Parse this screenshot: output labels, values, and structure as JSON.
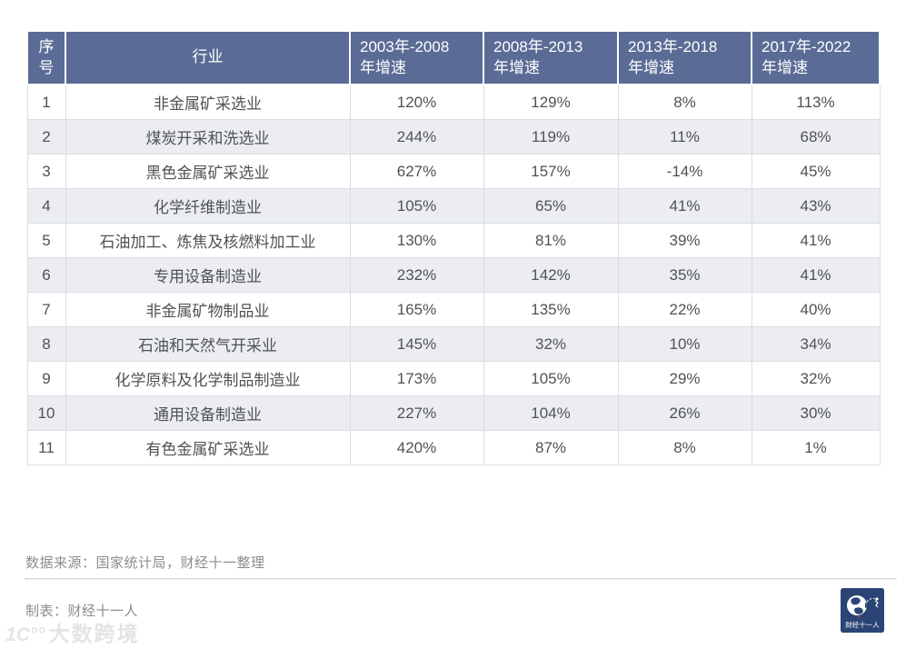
{
  "table": {
    "columns": [
      "序\n号",
      "行业",
      "2003年-2008\n年增速",
      "2008年-2013\n年增速",
      "2013年-2018\n年增速",
      "2017年-2022\n年增速"
    ],
    "rows": [
      {
        "num": "1",
        "industry": "非金属矿采选业",
        "values": [
          "120%",
          "129%",
          "8%",
          "113%"
        ]
      },
      {
        "num": "2",
        "industry": "煤炭开采和洗选业",
        "values": [
          "244%",
          "119%",
          "11%",
          "68%"
        ]
      },
      {
        "num": "3",
        "industry": "黑色金属矿采选业",
        "values": [
          "627%",
          "157%",
          "-14%",
          "45%"
        ]
      },
      {
        "num": "4",
        "industry": "化学纤维制造业",
        "values": [
          "105%",
          "65%",
          "41%",
          "43%"
        ]
      },
      {
        "num": "5",
        "industry": "石油加工、炼焦及核燃料加工业",
        "values": [
          "130%",
          "81%",
          "39%",
          "41%"
        ]
      },
      {
        "num": "6",
        "industry": "专用设备制造业",
        "values": [
          "232%",
          "142%",
          "35%",
          "41%"
        ]
      },
      {
        "num": "7",
        "industry": "非金属矿物制品业",
        "values": [
          "165%",
          "135%",
          "22%",
          "40%"
        ]
      },
      {
        "num": "8",
        "industry": "石油和天然气开采业",
        "values": [
          "145%",
          "32%",
          "10%",
          "34%"
        ]
      },
      {
        "num": "9",
        "industry": "化学原料及化学制品制造业",
        "values": [
          "173%",
          "105%",
          "29%",
          "32%"
        ]
      },
      {
        "num": "10",
        "industry": "通用设备制造业",
        "values": [
          "227%",
          "104%",
          "26%",
          "30%"
        ]
      },
      {
        "num": "11",
        "industry": "有色金属矿采选业",
        "values": [
          "420%",
          "87%",
          "8%",
          "1%"
        ]
      }
    ]
  },
  "footer": {
    "source": "数据来源：国家统计局，财经十一整理",
    "credit": "制表：财经十一人"
  },
  "logo": {
    "label": "财经十一人",
    "bg_color": "#2a4575"
  },
  "watermark": {
    "glyph": "1C°°",
    "text": "大数跨境"
  },
  "colors": {
    "header_bg": "#5a6c96",
    "header_text": "#ffffff",
    "row_alt_bg": "#ebedf1",
    "cell_border": "#d9dde3",
    "cell_text": "#4f5256",
    "footer_text": "#8c8c8c",
    "logo_bg": "#2a4575"
  },
  "chart_data": {
    "type": "table",
    "title": "",
    "columns": [
      "序号",
      "行业",
      "2003年-2008年增速",
      "2008年-2013年增速",
      "2013年-2018年增速",
      "2017年-2022年增速"
    ],
    "rows": [
      [
        1,
        "非金属矿采选业",
        "120%",
        "129%",
        "8%",
        "113%"
      ],
      [
        2,
        "煤炭开采和洗选业",
        "244%",
        "119%",
        "11%",
        "68%"
      ],
      [
        3,
        "黑色金属矿采选业",
        "627%",
        "157%",
        "-14%",
        "45%"
      ],
      [
        4,
        "化学纤维制造业",
        "105%",
        "65%",
        "41%",
        "43%"
      ],
      [
        5,
        "石油加工、炼焦及核燃料加工业",
        "130%",
        "81%",
        "39%",
        "41%"
      ],
      [
        6,
        "专用设备制造业",
        "232%",
        "142%",
        "35%",
        "41%"
      ],
      [
        7,
        "非金属矿物制品业",
        "165%",
        "135%",
        "22%",
        "40%"
      ],
      [
        8,
        "石油和天然气开采业",
        "145%",
        "32%",
        "10%",
        "34%"
      ],
      [
        9,
        "化学原料及化学制品制造业",
        "173%",
        "105%",
        "29%",
        "32%"
      ],
      [
        10,
        "通用设备制造业",
        "227%",
        "104%",
        "26%",
        "30%"
      ],
      [
        11,
        "有色金属矿采选业",
        "420%",
        "87%",
        "8%",
        "1%"
      ]
    ],
    "source": "国家统计局，财经十一整理",
    "creator": "财经十一人",
    "layout_hints": {
      "striped_rows": true,
      "header_bg": "#5a6c96",
      "grid": true
    }
  }
}
